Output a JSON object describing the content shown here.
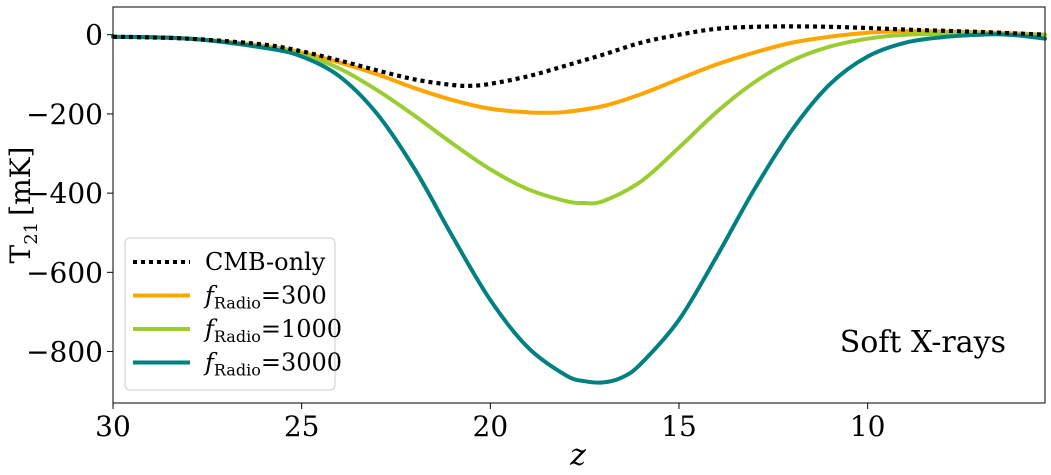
{
  "chart_data": {
    "type": "line",
    "title": "",
    "xlabel": "z",
    "ylabel": "T21 [mK]",
    "ylabel_main": "T",
    "ylabel_sub": "21",
    "ylabel_unit": "[mK]",
    "xlim": [
      30,
      5.3
    ],
    "ylim": [
      -930,
      70
    ],
    "x_ticks": [
      30,
      25,
      20,
      15,
      10
    ],
    "x_tick_labels": [
      "30",
      "25",
      "20",
      "15",
      "10"
    ],
    "y_ticks": [
      0,
      -200,
      -400,
      -600,
      -800
    ],
    "y_tick_labels": [
      "0",
      "−200",
      "−400",
      "−600",
      "−800"
    ],
    "grid": false,
    "legend_position": "lower-left",
    "annotation": "Soft X-rays",
    "series": [
      {
        "name": "CMB-only",
        "legend_label": "CMB-only",
        "color": "#000000",
        "style": "dotted",
        "x": [
          30,
          28,
          26,
          25,
          24,
          23,
          22,
          21,
          20.5,
          20,
          19,
          18,
          17,
          16,
          15,
          14,
          13,
          12,
          11,
          10,
          9,
          8,
          7,
          6,
          5.3
        ],
        "y": [
          -5,
          -10,
          -25,
          -42,
          -65,
          -90,
          -113,
          -127,
          -129,
          -124,
          -105,
          -78,
          -50,
          -20,
          0,
          15,
          20,
          21,
          20,
          17,
          13,
          10,
          7,
          3,
          0
        ]
      },
      {
        "name": "fRadio=300",
        "legend_prefix": "f",
        "legend_sub": "Radio",
        "legend_value": "=300",
        "color": "#FFA500",
        "style": "solid",
        "x": [
          30,
          28,
          26,
          25,
          24,
          23,
          22,
          21,
          20,
          19,
          18.5,
          18,
          17,
          16,
          15,
          14,
          13,
          12,
          11,
          10,
          9,
          8,
          7,
          6,
          5.3
        ],
        "y": [
          -5,
          -10,
          -28,
          -45,
          -70,
          -100,
          -135,
          -165,
          -187,
          -196,
          -197,
          -195,
          -180,
          -150,
          -112,
          -75,
          -45,
          -20,
          -5,
          5,
          9,
          8,
          6,
          3,
          0
        ]
      },
      {
        "name": "fRadio=1000",
        "legend_prefix": "f",
        "legend_sub": "Radio",
        "legend_value": "=1000",
        "color": "#9ACD32",
        "style": "solid",
        "x": [
          30,
          28,
          26,
          25,
          24,
          23,
          22,
          21,
          20,
          19,
          18,
          17.5,
          17,
          16,
          15,
          14,
          13,
          12,
          11,
          10,
          9,
          8,
          7,
          6,
          5.3
        ],
        "y": [
          -5,
          -10,
          -30,
          -50,
          -85,
          -140,
          -205,
          -275,
          -340,
          -390,
          -420,
          -425,
          -420,
          -370,
          -285,
          -195,
          -120,
          -65,
          -30,
          -10,
          0,
          2,
          2,
          1,
          0
        ]
      },
      {
        "name": "fRadio=3000",
        "legend_prefix": "f",
        "legend_sub": "Radio",
        "legend_value": "=3000",
        "color": "#008080",
        "style": "solid",
        "x": [
          30,
          28,
          26,
          25,
          24,
          23,
          22,
          21,
          20,
          19,
          18,
          17.5,
          17,
          16.5,
          16,
          15,
          14,
          13,
          12,
          11,
          10,
          9,
          8,
          7,
          6.5,
          6,
          5.3
        ],
        "y": [
          -5,
          -10,
          -33,
          -55,
          -105,
          -200,
          -340,
          -510,
          -670,
          -790,
          -860,
          -875,
          -878,
          -865,
          -830,
          -720,
          -560,
          -390,
          -240,
          -125,
          -55,
          -20,
          -6,
          0,
          1,
          -2,
          -10
        ]
      }
    ]
  }
}
